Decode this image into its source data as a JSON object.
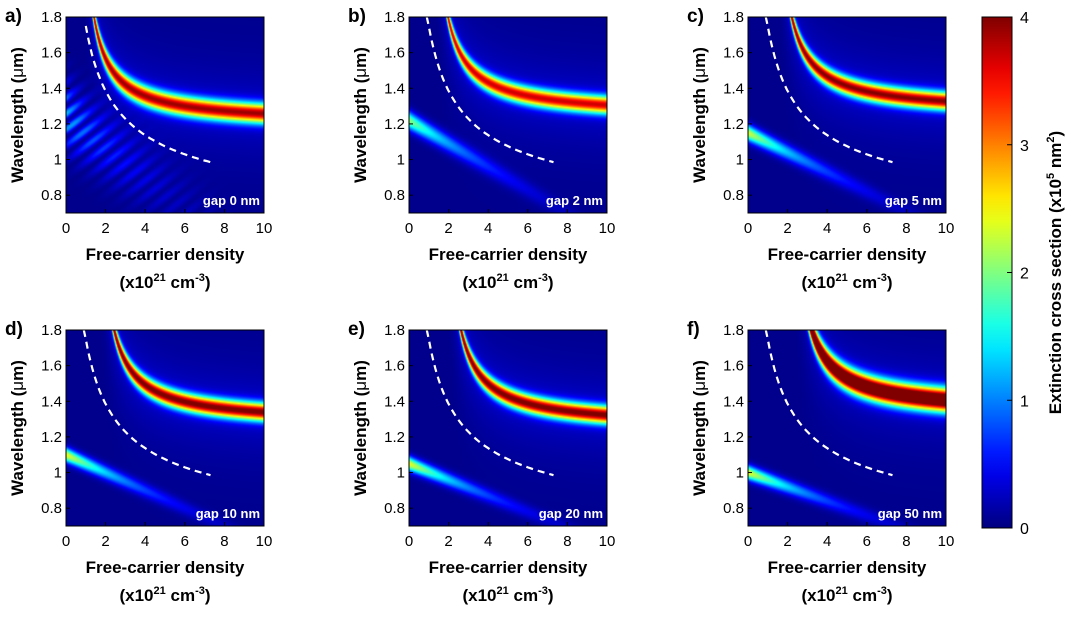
{
  "chart_data": {
    "type": "heatmap",
    "colorbar": {
      "label": "Extinction cross section",
      "label_unit": "(x10",
      "label_exp": "5",
      "label_unit2": " nm",
      "label_exp2": "2",
      "label_close": ")",
      "range": [
        0,
        4
      ],
      "ticks": [
        "0",
        "1",
        "2",
        "3",
        "4"
      ],
      "colormap": "jet"
    },
    "shared_axes": {
      "ylabel_text": "Wavelength (",
      "ylabel_mu": "μ",
      "ylabel_end": "m)",
      "xlabel_line1": "Free-carrier density",
      "xlabel_line2_pre": "(x10",
      "xlabel_line2_exp1": "21",
      "xlabel_line2_mid": " cm",
      "xlabel_line2_exp2": "-3",
      "xlabel_line2_post": ")",
      "xlim": [
        0,
        10
      ],
      "ylim": [
        0.7,
        1.8
      ],
      "xticks": [
        "0",
        "2",
        "4",
        "6",
        "8",
        "10"
      ],
      "yticks": [
        "0.8",
        "1",
        "1.2",
        "1.4",
        "1.6",
        "1.8"
      ]
    },
    "panels": [
      {
        "panel_label": "a)",
        "annotation": "gap 0 nm",
        "main_resonance": {
          "A": 1.2,
          "x0": 0.5,
          "k": 0.55,
          "width": 0.055,
          "peak": 3.5
        },
        "secondary_resonance": {
          "start_wavelength": 1.25,
          "slope": 0.085,
          "width": 0.08,
          "peak": 1.2,
          "fringes": true
        },
        "dashed_curve": {
          "x_start": 1.0,
          "x_end": 7.3
        }
      },
      {
        "panel_label": "b)",
        "annotation": "gap 2 nm",
        "main_resonance": {
          "A": 1.24,
          "x0": 0.9,
          "k": 0.6,
          "width": 0.05,
          "peak": 3.3
        },
        "secondary_resonance": {
          "start_wavelength": 1.22,
          "slope": 0.065,
          "width": 0.05,
          "peak": 2.0,
          "fringes": false
        },
        "dashed_curve": {
          "x_start": 0.9,
          "x_end": 7.3
        }
      },
      {
        "panel_label": "c)",
        "annotation": "gap 5 nm",
        "main_resonance": {
          "A": 1.26,
          "x0": 1.1,
          "k": 0.6,
          "width": 0.05,
          "peak": 3.6
        },
        "secondary_resonance": {
          "start_wavelength": 1.15,
          "slope": 0.055,
          "width": 0.045,
          "peak": 2.3,
          "fringes": false
        },
        "dashed_curve": {
          "x_start": 0.9,
          "x_end": 7.3
        }
      },
      {
        "panel_label": "d)",
        "annotation": "gap 10 nm",
        "main_resonance": {
          "A": 1.27,
          "x0": 1.3,
          "k": 0.6,
          "width": 0.05,
          "peak": 3.7
        },
        "secondary_resonance": {
          "start_wavelength": 1.1,
          "slope": 0.05,
          "width": 0.04,
          "peak": 2.4,
          "fringes": false
        },
        "dashed_curve": {
          "x_start": 0.9,
          "x_end": 7.3
        }
      },
      {
        "panel_label": "e)",
        "annotation": "gap 20 nm",
        "main_resonance": {
          "A": 1.25,
          "x0": 1.5,
          "k": 0.62,
          "width": 0.05,
          "peak": 3.7
        },
        "secondary_resonance": {
          "start_wavelength": 1.05,
          "slope": 0.045,
          "width": 0.04,
          "peak": 2.4,
          "fringes": false
        },
        "dashed_curve": {
          "x_start": 0.9,
          "x_end": 7.3
        }
      },
      {
        "panel_label": "f)",
        "annotation": "gap 50 nm",
        "main_resonance": {
          "A": 1.33,
          "x0": 1.9,
          "k": 0.62,
          "width": 0.065,
          "peak": 4.6
        },
        "secondary_resonance": {
          "start_wavelength": 1.0,
          "slope": 0.04,
          "width": 0.04,
          "peak": 2.4,
          "fringes": false
        },
        "dashed_curve": {
          "x_start": 0.9,
          "x_end": 7.3
        }
      }
    ]
  }
}
